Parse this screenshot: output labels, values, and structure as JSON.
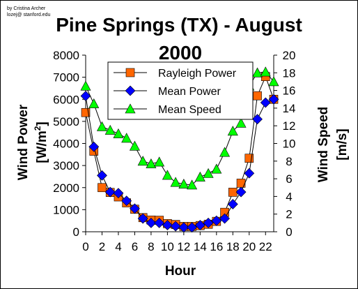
{
  "credit": {
    "line1": "by Cristina Archer",
    "line2": "lozej@ stanford.edu"
  },
  "chart_data": {
    "type": "line",
    "title": "Pine Springs (TX) - August",
    "title_line2": "2000",
    "xlabel": "Hour",
    "ylabel_left": "Wind Power",
    "ylabel_left_unit": "[W/m",
    "ylabel_left_unit_sup": "2",
    "ylabel_left_unit_close": "]",
    "ylabel_right": "Wind Speed",
    "ylabel_right_unit": "[m/s]",
    "x": [
      0,
      1,
      2,
      3,
      4,
      5,
      6,
      7,
      8,
      9,
      10,
      11,
      12,
      13,
      14,
      15,
      16,
      17,
      18,
      19,
      20,
      21,
      22,
      23
    ],
    "xlim": [
      0,
      23
    ],
    "xticks": [
      "0",
      "2",
      "4",
      "6",
      "8",
      "10",
      "12",
      "14",
      "16",
      "18",
      "20",
      "22"
    ],
    "xtick_values": [
      0,
      2,
      4,
      6,
      8,
      10,
      12,
      14,
      16,
      18,
      20,
      22
    ],
    "ylim_left": [
      0,
      8000
    ],
    "yticks_left": [
      "0",
      "1000",
      "2000",
      "3000",
      "4000",
      "5000",
      "6000",
      "7000",
      "8000"
    ],
    "ytick_values_left": [
      0,
      1000,
      2000,
      3000,
      4000,
      5000,
      6000,
      7000,
      8000
    ],
    "ylim_right": [
      0,
      20
    ],
    "yticks_right": [
      "0",
      "2",
      "4",
      "6",
      "8",
      "10",
      "12",
      "14",
      "16",
      "18",
      "20"
    ],
    "ytick_values_right": [
      0,
      2,
      4,
      6,
      8,
      10,
      12,
      14,
      16,
      18,
      20
    ],
    "grid": false,
    "legend_position": "top-center",
    "series": [
      {
        "name": "Rayleigh Power",
        "axis": "left",
        "marker": "square",
        "color": "#ff6600",
        "values": [
          5400,
          3650,
          2000,
          1780,
          1580,
          1310,
          1020,
          640,
          530,
          520,
          370,
          330,
          240,
          240,
          280,
          340,
          470,
          880,
          1790,
          2200,
          3330,
          6160,
          7030,
          6000
        ]
      },
      {
        "name": "Mean Power",
        "axis": "left",
        "marker": "diamond",
        "color": "#0000ff",
        "values": [
          6150,
          3850,
          2550,
          1800,
          1750,
          1400,
          1050,
          600,
          400,
          400,
          300,
          250,
          200,
          200,
          300,
          400,
          500,
          600,
          1250,
          1800,
          2650,
          5100,
          5850,
          6000
        ]
      },
      {
        "name": "Mean Speed",
        "axis": "right",
        "marker": "triangle",
        "color": "#00ff00",
        "values": [
          16.5,
          14.5,
          11.9,
          11.5,
          11.1,
          10.6,
          9.7,
          8.0,
          7.7,
          7.9,
          6.4,
          5.6,
          5.4,
          5.3,
          6.2,
          6.6,
          7.1,
          9.0,
          11.4,
          12.3,
          16.5,
          18.0,
          18.1,
          17.0
        ]
      }
    ]
  }
}
